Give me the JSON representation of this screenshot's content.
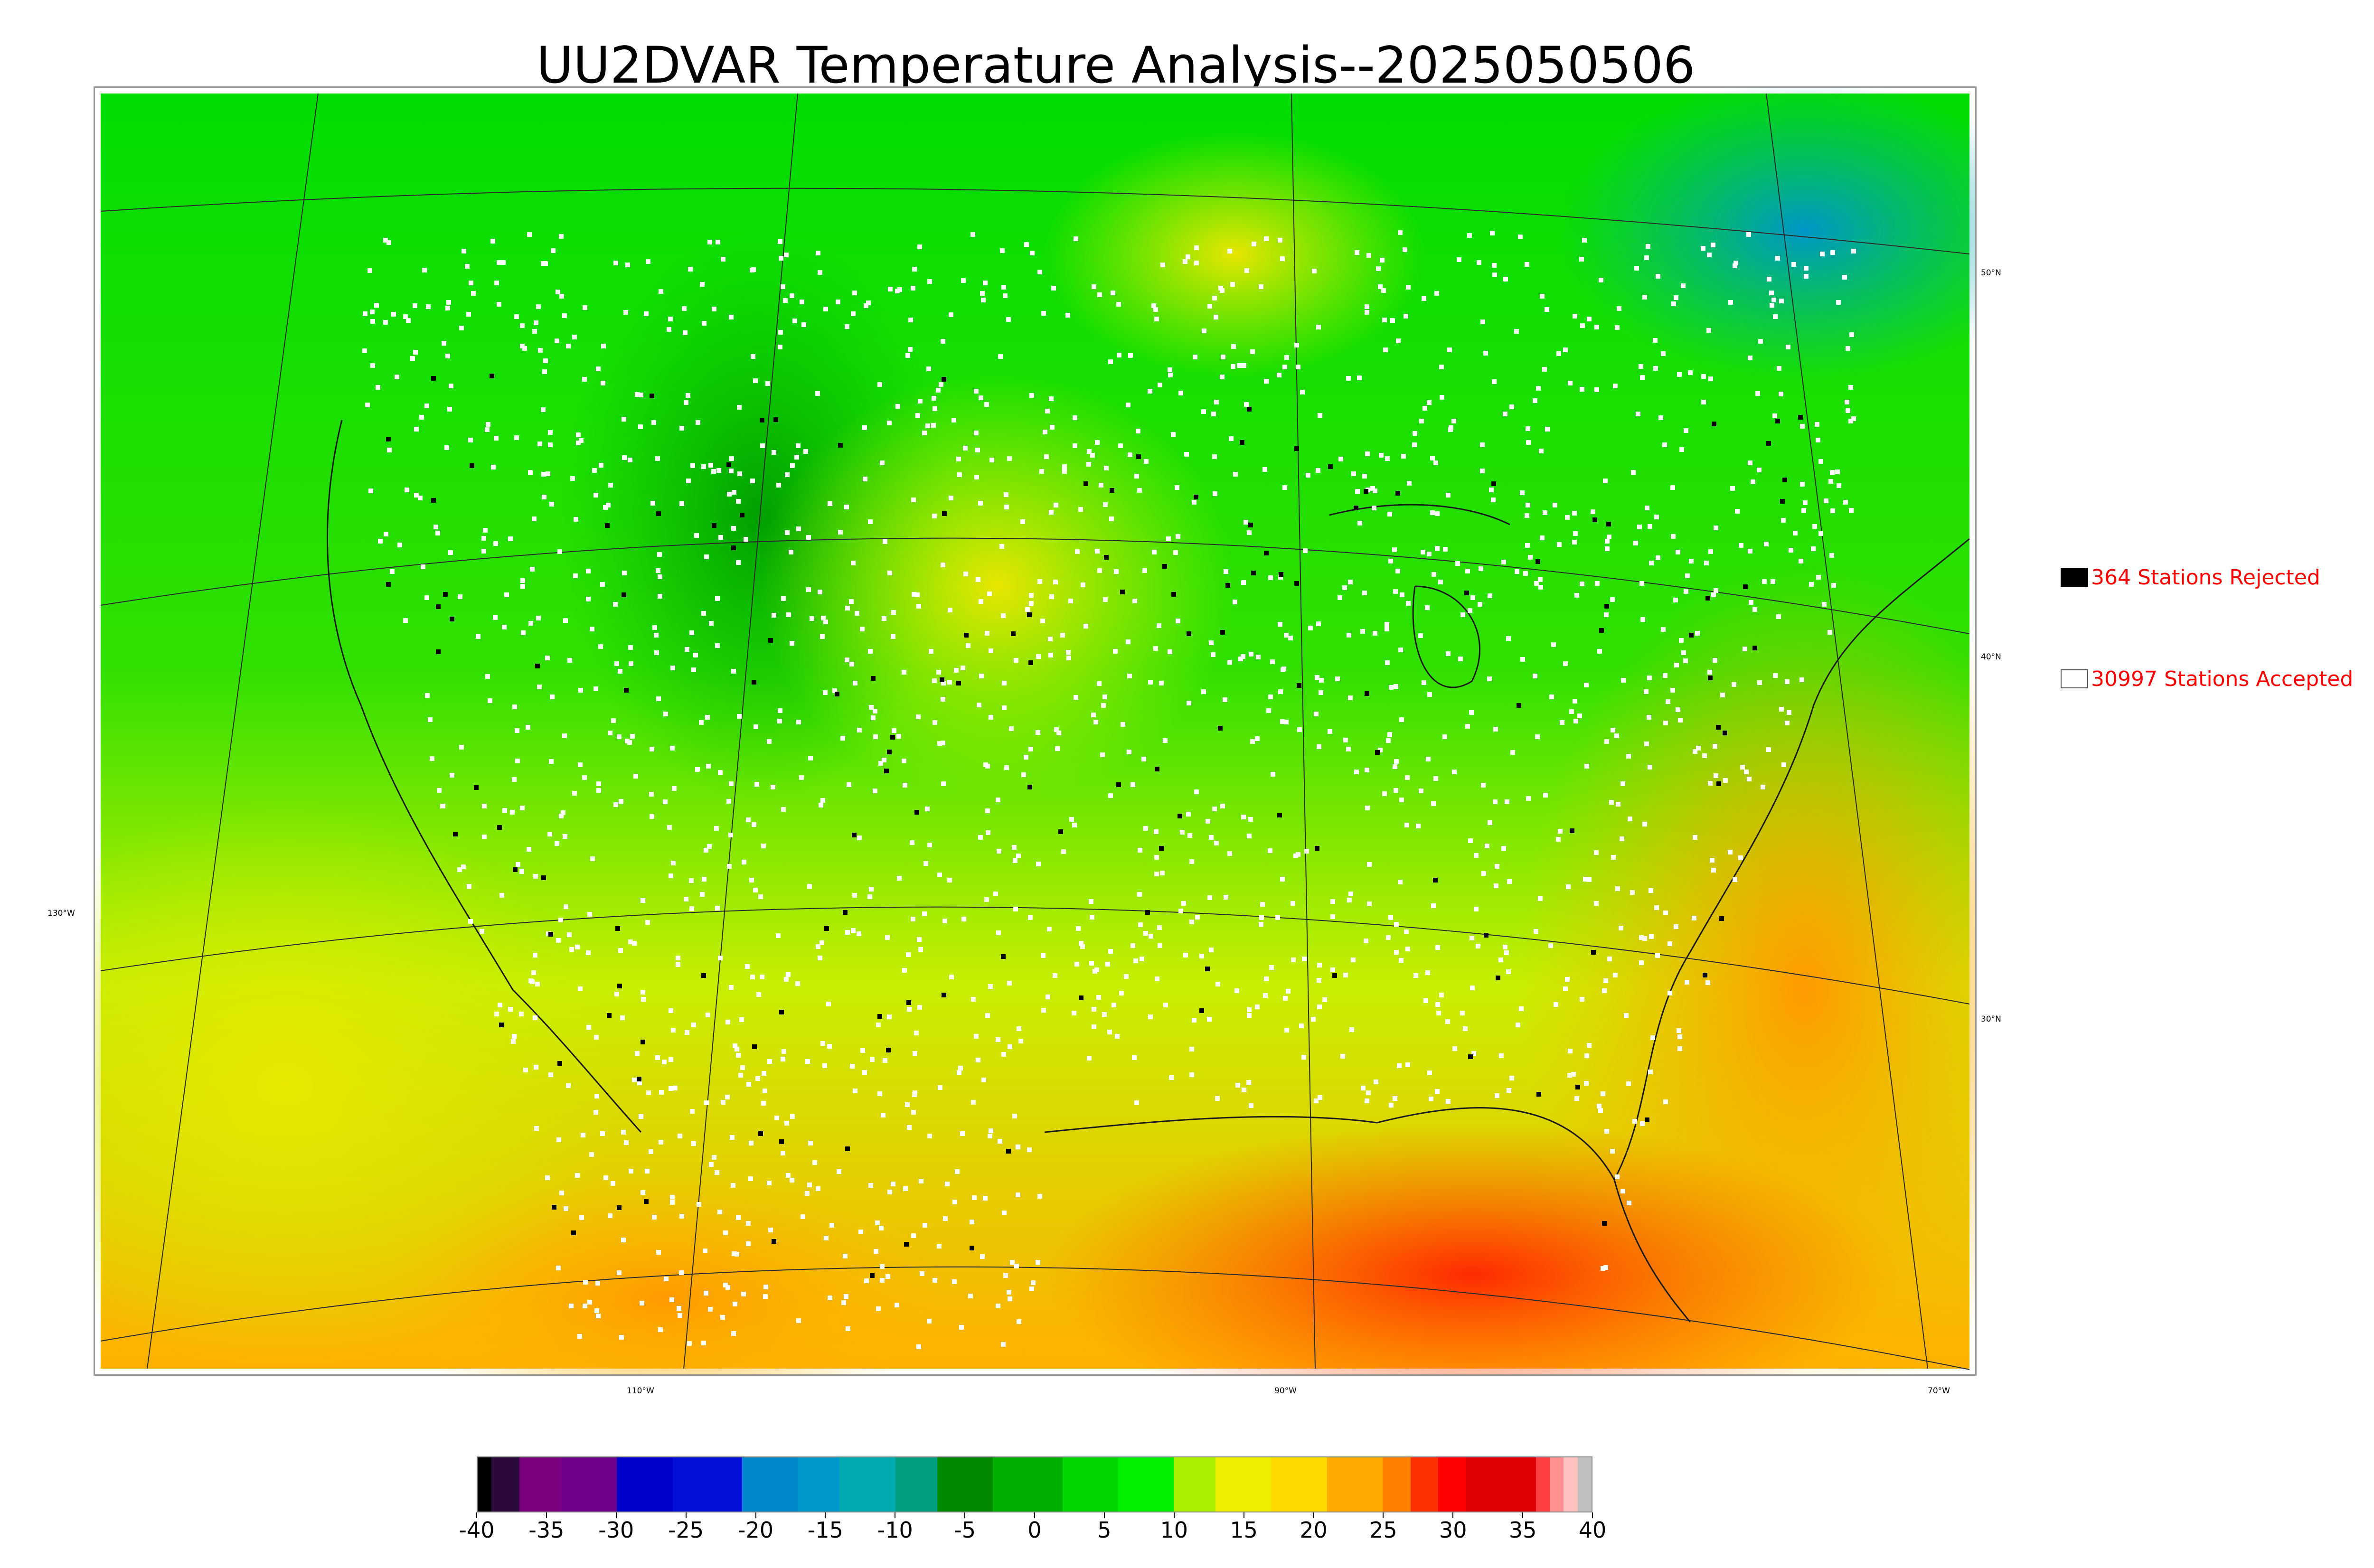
{
  "title": "UU2DVAR Temperature Analysis--2025050506",
  "map": {
    "region": "CONUS and surrounding areas",
    "latitude_labels": [
      "50°N",
      "40°N",
      "30°N"
    ],
    "longitude_labels": [
      "130°W",
      "110°W",
      "90°W",
      "70°W"
    ]
  },
  "legend": {
    "rejected": {
      "text": "364 Stations Rejected",
      "count": 364,
      "marker_color": "#000000"
    },
    "accepted": {
      "text": "30997 Stations Accepted",
      "count": 30997,
      "marker_color": "#ffffff"
    },
    "text_color": "#ff0000"
  },
  "colorbar": {
    "tick_labels": [
      "-40",
      "-35",
      "-30",
      "-25",
      "-20",
      "-15",
      "-10",
      "-5",
      "0",
      "5",
      "10",
      "15",
      "20",
      "25",
      "30",
      "35",
      "40"
    ],
    "range": [
      -40,
      40
    ],
    "colors": [
      {
        "from": -40,
        "to": -39,
        "color": "#000000"
      },
      {
        "from": -39,
        "to": -37,
        "color": "#2a0a3d"
      },
      {
        "from": -37,
        "to": -34,
        "color": "#7b0080"
      },
      {
        "from": -34,
        "to": -30,
        "color": "#70008a"
      },
      {
        "from": -30,
        "to": -26,
        "color": "#0000cc"
      },
      {
        "from": -26,
        "to": -21,
        "color": "#0010d8"
      },
      {
        "from": -21,
        "to": -17,
        "color": "#0088cc"
      },
      {
        "from": -17,
        "to": -14,
        "color": "#0099cc"
      },
      {
        "from": -14,
        "to": -10,
        "color": "#00aab0"
      },
      {
        "from": -10,
        "to": -7,
        "color": "#00a080"
      },
      {
        "from": -7,
        "to": -3,
        "color": "#008a00"
      },
      {
        "from": -3,
        "to": 2,
        "color": "#00b000"
      },
      {
        "from": 2,
        "to": 6,
        "color": "#00d800"
      },
      {
        "from": 6,
        "to": 10,
        "color": "#00f000"
      },
      {
        "from": 10,
        "to": 13,
        "color": "#aaee00"
      },
      {
        "from": 13,
        "to": 17,
        "color": "#eeee00"
      },
      {
        "from": 17,
        "to": 21,
        "color": "#ffd800"
      },
      {
        "from": 21,
        "to": 25,
        "color": "#ffa800"
      },
      {
        "from": 25,
        "to": 27,
        "color": "#ff8000"
      },
      {
        "from": 27,
        "to": 29,
        "color": "#ff3000"
      },
      {
        "from": 29,
        "to": 31,
        "color": "#ff0000"
      },
      {
        "from": 31,
        "to": 36,
        "color": "#dd0000"
      },
      {
        "from": 36,
        "to": 37,
        "color": "#ff4040"
      },
      {
        "from": 37,
        "to": 38,
        "color": "#ff9090"
      },
      {
        "from": 38,
        "to": 39,
        "color": "#ffc0c0"
      },
      {
        "from": 39,
        "to": 40,
        "color": "#c0c0c0"
      }
    ]
  }
}
